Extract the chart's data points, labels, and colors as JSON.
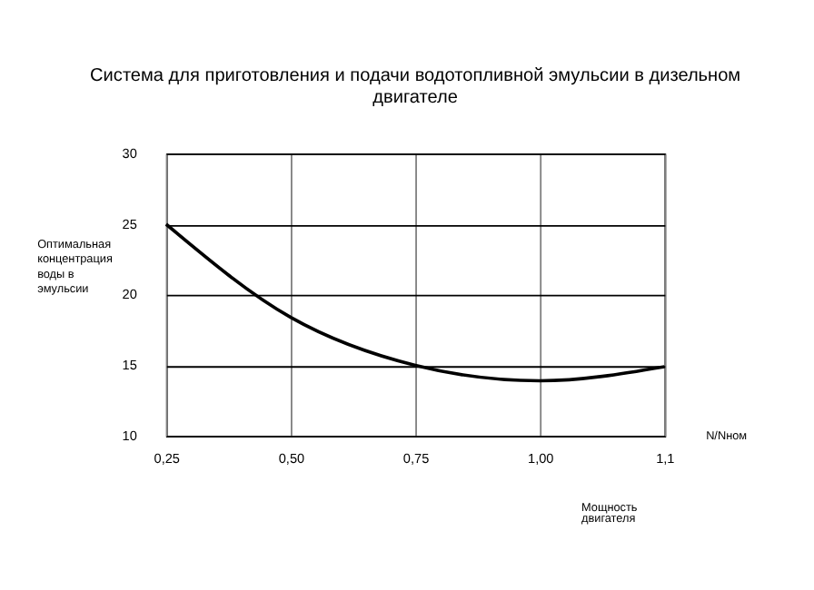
{
  "chart_data": {
    "type": "line",
    "title": "Система для приготовления и подачи водотопливной эмульсии в дизельном двигателе",
    "categories": [
      "0,25",
      "0,50",
      "0,75",
      "1,00",
      "1,1"
    ],
    "series": [
      {
        "color": "#000000",
        "values": [
          25,
          18.4,
          15,
          13.9,
          14.9
        ]
      }
    ],
    "xlabel": "Мощность двигателя",
    "ylabel": "Оптимальная концентрация воды в эмульсии",
    "annotations": [
      "N/Nном"
    ],
    "ylim": [
      10,
      30
    ],
    "yticks": [
      10,
      15,
      20,
      25,
      30
    ],
    "grid": true,
    "marker": "none",
    "line_style": "solid"
  }
}
